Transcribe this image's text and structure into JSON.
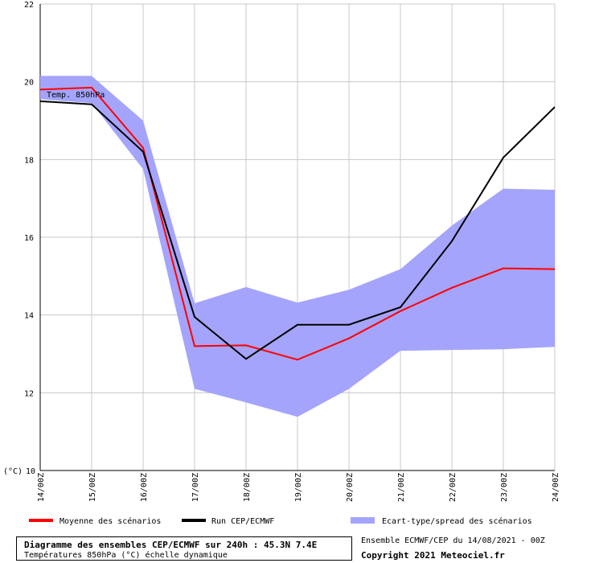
{
  "chart_data": {
    "type": "line",
    "x": [
      "14/00Z",
      "15/00Z",
      "16/00Z",
      "17/00Z",
      "18/00Z",
      "19/00Z",
      "20/00Z",
      "21/00Z",
      "22/00Z",
      "23/00Z",
      "24/00Z"
    ],
    "ylim": [
      10,
      22
    ],
    "yticks": [
      10,
      12,
      14,
      16,
      18,
      20,
      22
    ],
    "yunit_label": "(°C)",
    "series_label": "Temp. 850hPa",
    "grid": true,
    "series": [
      {
        "name": "Moyenne des scénarios",
        "color": "#ff0000",
        "values": [
          19.8,
          19.85,
          18.3,
          13.2,
          13.22,
          12.85,
          13.4,
          14.1,
          14.7,
          15.2,
          15.18
        ]
      },
      {
        "name": "Run CEP/ECMWF",
        "color": "#000000",
        "values": [
          19.5,
          19.42,
          18.2,
          13.95,
          12.87,
          13.75,
          13.75,
          14.2,
          15.9,
          18.05,
          19.35
        ]
      }
    ],
    "band": {
      "name": "Ecart-type/spread des scénarios",
      "color": "#a4a4fc",
      "upper": [
        20.15,
        20.15,
        19.0,
        14.3,
        14.72,
        14.32,
        14.65,
        15.18,
        16.3,
        17.25,
        17.22
      ],
      "lower": [
        19.55,
        19.45,
        17.75,
        12.1,
        11.75,
        11.38,
        12.1,
        13.08,
        13.1,
        13.12,
        13.18
      ]
    }
  },
  "footer": {
    "title": "Diagramme des ensembles CEP/ECMWF sur 240h : 45.3N 7.4E",
    "subtitle": "Températures 850hPa (°C) échelle dynamique",
    "ensemble_info": "Ensemble ECMWF/CEP du 14/08/2021 - 00Z",
    "copyright": "Copyright 2021 Meteociel.fr"
  }
}
